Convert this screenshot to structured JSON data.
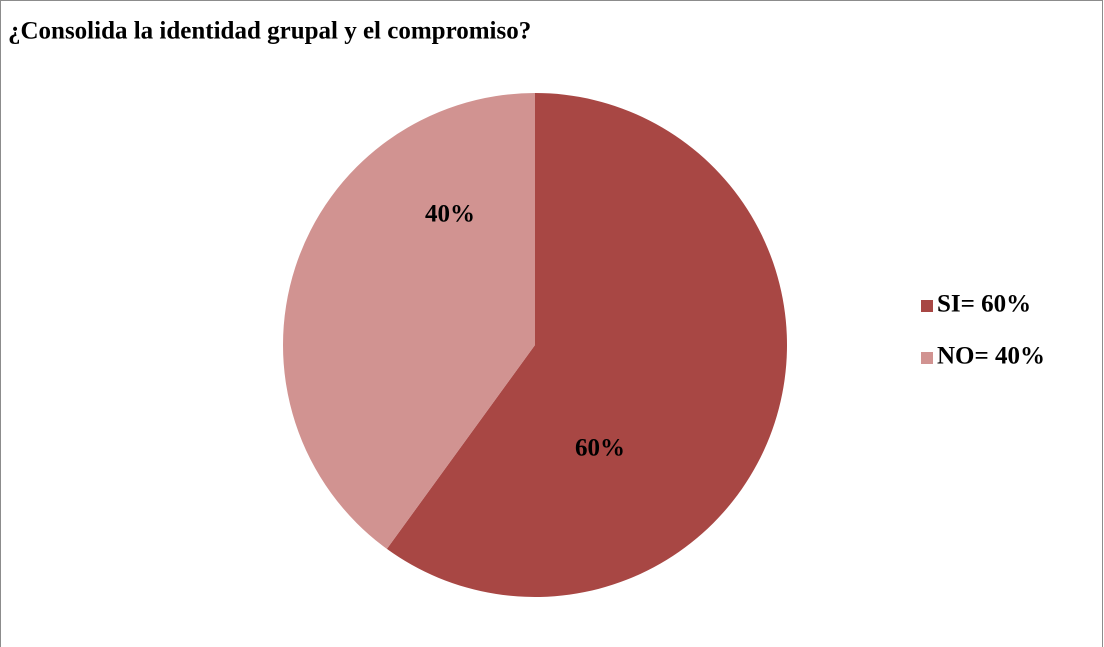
{
  "chart_data": {
    "type": "pie",
    "title": "¿Consolida la identidad grupal y el compromiso?",
    "categories": [
      "SI= 60%",
      "NO= 40%"
    ],
    "values": [
      60,
      40
    ],
    "value_labels": [
      "60%",
      "40%"
    ],
    "colors": [
      "#a84744",
      "#d19391"
    ],
    "legend": "right"
  }
}
